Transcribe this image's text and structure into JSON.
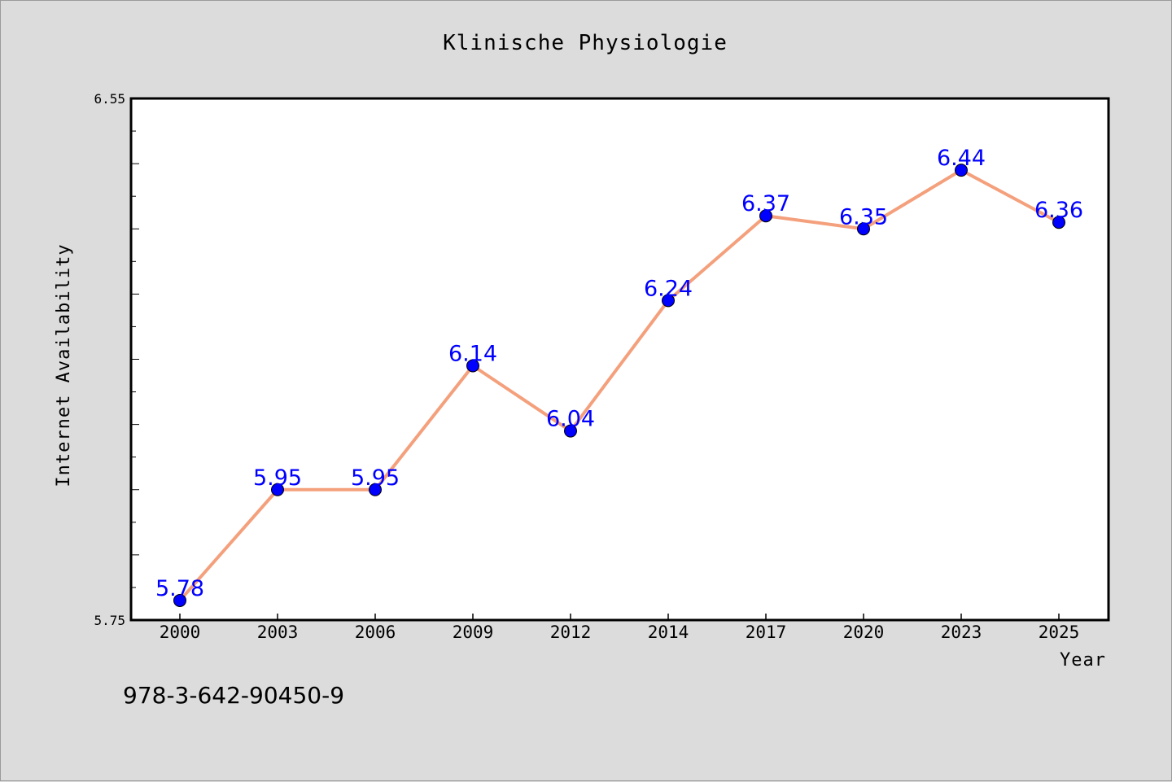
{
  "chart_data": {
    "type": "line",
    "title": "Klinische Physiologie",
    "xlabel": "Year",
    "ylabel": "Internet Availability",
    "categories": [
      "2000",
      "2003",
      "2006",
      "2009",
      "2012",
      "2014",
      "2017",
      "2020",
      "2023",
      "2025"
    ],
    "series": [
      {
        "values": [
          5.78,
          5.95,
          5.95,
          6.14,
          6.04,
          6.24,
          6.37,
          6.35,
          6.44,
          6.36
        ],
        "data_labels": [
          "5.78",
          "5.95",
          "5.95",
          "6.14",
          "6.04",
          "6.24",
          "6.37",
          "6.35",
          "6.44",
          "6.36"
        ],
        "line_color": "#f4a07c",
        "marker_color": "#0000ff"
      }
    ],
    "ylim": [
      5.75,
      6.55
    ],
    "ytick_labels": [
      "6.55",
      "5.75"
    ],
    "grid": false,
    "legend": "none"
  },
  "footer": {
    "isbn": "978-3-642-90450-9"
  },
  "colors": {
    "background": "#dcdcdc",
    "plot_background": "#ffffff",
    "axis": "#000000"
  }
}
